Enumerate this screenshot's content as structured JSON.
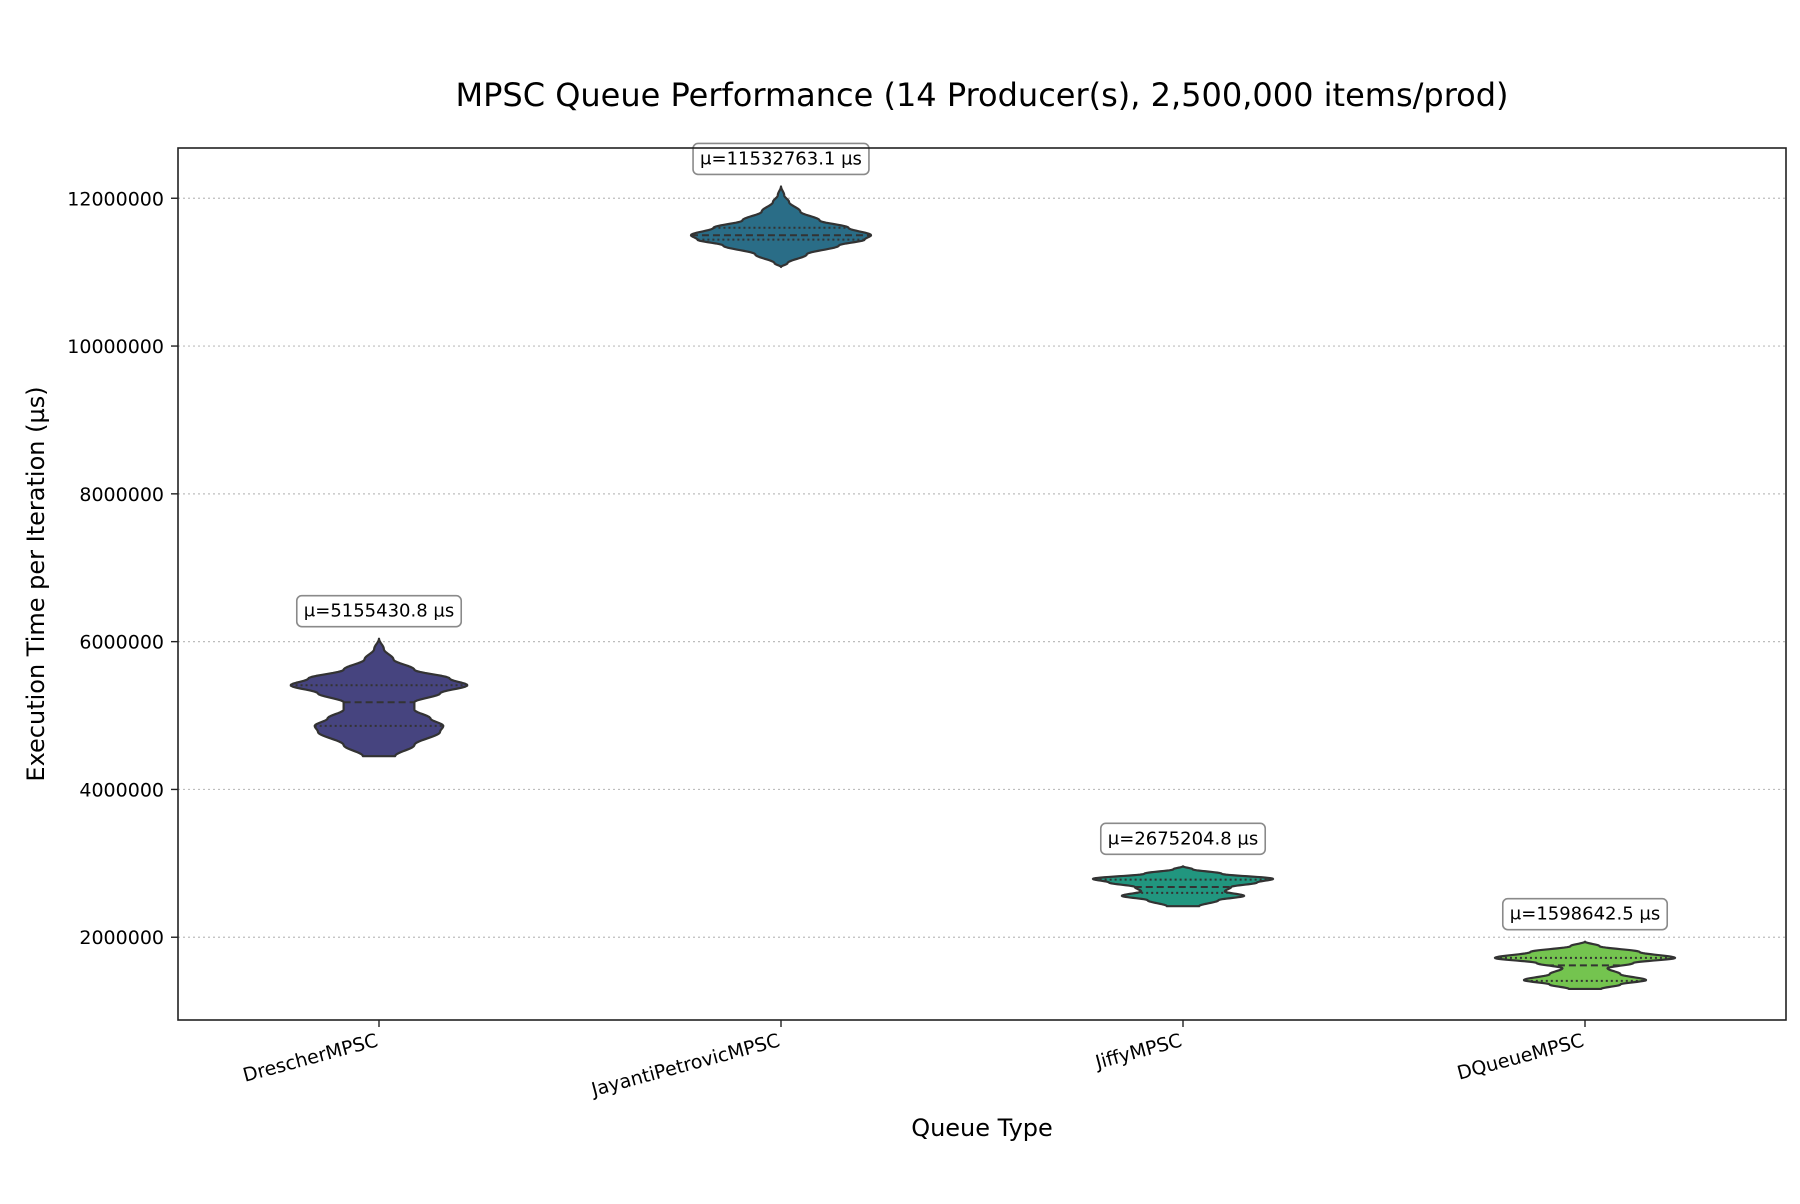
{
  "chart_data": {
    "type": "violin",
    "title": "MPSC Queue Performance (14 Producer(s), 2,500,000 items/prod)",
    "xlabel": "Queue Type",
    "ylabel": "Execution Time per Iteration (µs)",
    "ylim": [
      880000,
      12680000
    ],
    "yticks": [
      "2000000",
      "4000000",
      "6000000",
      "8000000",
      "10000000",
      "12000000"
    ],
    "grid": "y-dotted",
    "legend": "none",
    "categories": [
      "DrescherMPSC",
      "JayantiPetrovicMPSC",
      "JiffyMPSC",
      "DQueueMPSC"
    ],
    "series": [
      {
        "category": "DrescherMPSC",
        "mean_label": "μ=5155430.8 µs",
        "mean": 5155430.8,
        "color": "#46447f",
        "min": 4450000,
        "max": 6040000,
        "q1": 4860000,
        "median": 5180000,
        "q3": 5410000,
        "profile": [
          [
            4450000,
            0.1
          ],
          [
            4600000,
            0.22
          ],
          [
            4780000,
            0.38
          ],
          [
            4860000,
            0.4
          ],
          [
            4960000,
            0.32
          ],
          [
            5080000,
            0.22
          ],
          [
            5180000,
            0.22
          ],
          [
            5300000,
            0.38
          ],
          [
            5410000,
            0.55
          ],
          [
            5500000,
            0.44
          ],
          [
            5620000,
            0.22
          ],
          [
            5760000,
            0.09
          ],
          [
            5900000,
            0.03
          ],
          [
            6040000,
            0.0
          ]
        ]
      },
      {
        "category": "JayantiPetrovicMPSC",
        "mean_label": "μ=11532763.1 µs",
        "mean": 11532763.1,
        "color": "#2a6d87",
        "min": 11070000,
        "max": 12160000,
        "q1": 11440000,
        "median": 11500000,
        "q3": 11600000,
        "profile": [
          [
            11070000,
            0.0
          ],
          [
            11120000,
            0.04
          ],
          [
            11240000,
            0.16
          ],
          [
            11360000,
            0.36
          ],
          [
            11440000,
            0.52
          ],
          [
            11500000,
            0.56
          ],
          [
            11600000,
            0.42
          ],
          [
            11700000,
            0.24
          ],
          [
            11820000,
            0.12
          ],
          [
            11950000,
            0.05
          ],
          [
            12040000,
            0.02
          ],
          [
            12160000,
            0.0
          ]
        ]
      },
      {
        "category": "JiffyMPSC",
        "mean_label": "μ=2675204.8 µs",
        "mean": 2675204.8,
        "color": "#21967f",
        "min": 2420000,
        "max": 2960000,
        "q1": 2600000,
        "median": 2680000,
        "q3": 2780000,
        "profile": [
          [
            2420000,
            0.1
          ],
          [
            2500000,
            0.22
          ],
          [
            2560000,
            0.38
          ],
          [
            2620000,
            0.26
          ],
          [
            2680000,
            0.3
          ],
          [
            2740000,
            0.46
          ],
          [
            2790000,
            0.56
          ],
          [
            2860000,
            0.24
          ],
          [
            2920000,
            0.06
          ],
          [
            2960000,
            0.0
          ]
        ]
      },
      {
        "category": "DQueueMPSC",
        "mean_label": "μ=1598642.5 µs",
        "mean": 1598642.5,
        "color": "#74c44f",
        "min": 1300000,
        "max": 1940000,
        "q1": 1410000,
        "median": 1620000,
        "q3": 1720000,
        "profile": [
          [
            1300000,
            0.1
          ],
          [
            1360000,
            0.22
          ],
          [
            1420000,
            0.38
          ],
          [
            1500000,
            0.22
          ],
          [
            1580000,
            0.14
          ],
          [
            1650000,
            0.3
          ],
          [
            1720000,
            0.56
          ],
          [
            1800000,
            0.34
          ],
          [
            1880000,
            0.09
          ],
          [
            1940000,
            0.0
          ]
        ]
      }
    ]
  }
}
